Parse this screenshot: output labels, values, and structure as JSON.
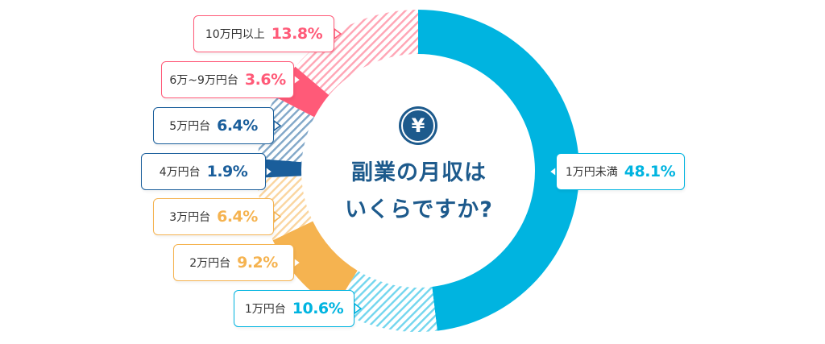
{
  "chart_data": {
    "type": "pie",
    "title": "副業の月収は\nいくらですか?",
    "title_lines": [
      "副業の月収は",
      "いくらですか?"
    ],
    "slices": [
      {
        "label": "1万円未満",
        "value": 48.1,
        "value_label": "48.1%",
        "color": "#00b4e0",
        "fill": "solid"
      },
      {
        "label": "1万円台",
        "value": 10.6,
        "value_label": "10.6%",
        "color": "#00b4e0",
        "fill": "hatched"
      },
      {
        "label": "2万円台",
        "value": 9.2,
        "value_label": "9.2%",
        "color": "#f5b350",
        "fill": "solid"
      },
      {
        "label": "3万円台",
        "value": 6.4,
        "value_label": "6.4%",
        "color": "#f5b350",
        "fill": "hatched"
      },
      {
        "label": "4万円台",
        "value": 1.9,
        "value_label": "1.9%",
        "color": "#1a5e9b",
        "fill": "solid"
      },
      {
        "label": "5万円台",
        "value": 6.4,
        "value_label": "6.4%",
        "color": "#1a5e9b",
        "fill": "hatched"
      },
      {
        "label": "6万~9万円台",
        "value": 3.6,
        "value_label": "3.6%",
        "color": "#ff5a78",
        "fill": "solid"
      },
      {
        "label": "10万円以上",
        "value": 13.8,
        "value_label": "13.8%",
        "color": "#ff5a78",
        "fill": "hatched"
      }
    ],
    "center_icon": "yen-icon",
    "center_icon_text": "¥",
    "legend": "callout-labels",
    "colors": {
      "title": "#1d5a8c",
      "label_text": "#333333"
    }
  }
}
